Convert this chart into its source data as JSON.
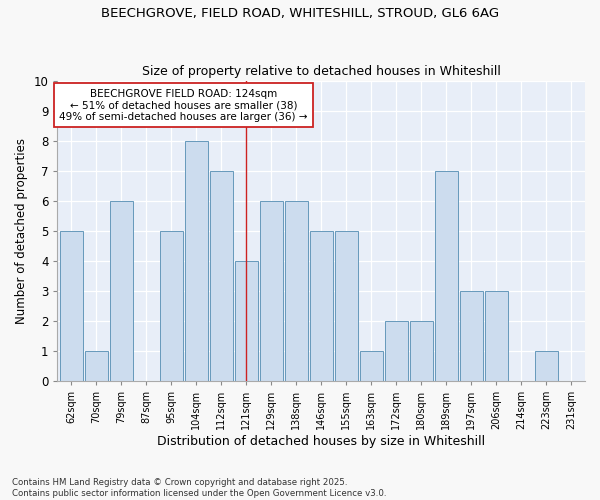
{
  "title_line1": "BEECHGROVE, FIELD ROAD, WHITESHILL, STROUD, GL6 6AG",
  "title_line2": "Size of property relative to detached houses in Whiteshill",
  "xlabel": "Distribution of detached houses by size in Whiteshill",
  "ylabel": "Number of detached properties",
  "categories": [
    "62sqm",
    "70sqm",
    "79sqm",
    "87sqm",
    "95sqm",
    "104sqm",
    "112sqm",
    "121sqm",
    "129sqm",
    "138sqm",
    "146sqm",
    "155sqm",
    "163sqm",
    "172sqm",
    "180sqm",
    "189sqm",
    "197sqm",
    "206sqm",
    "214sqm",
    "223sqm",
    "231sqm"
  ],
  "values": [
    5,
    1,
    6,
    0,
    5,
    8,
    7,
    4,
    6,
    6,
    5,
    5,
    1,
    2,
    2,
    7,
    3,
    3,
    0,
    1,
    0
  ],
  "bar_color": "#ccdcee",
  "bar_edge_color": "#6699bb",
  "highlight_index": 7,
  "highlight_color": "#cc2222",
  "annotation_title": "BEECHGROVE FIELD ROAD: 124sqm",
  "annotation_line1": "← 51% of detached houses are smaller (38)",
  "annotation_line2": "49% of semi-detached houses are larger (36) →",
  "ylim": [
    0,
    10
  ],
  "yticks": [
    0,
    1,
    2,
    3,
    4,
    5,
    6,
    7,
    8,
    9,
    10
  ],
  "footer_line1": "Contains HM Land Registry data © Crown copyright and database right 2025.",
  "footer_line2": "Contains public sector information licensed under the Open Government Licence v3.0.",
  "bg_color": "#f8f8f8",
  "plot_bg_color": "#e8eef8"
}
